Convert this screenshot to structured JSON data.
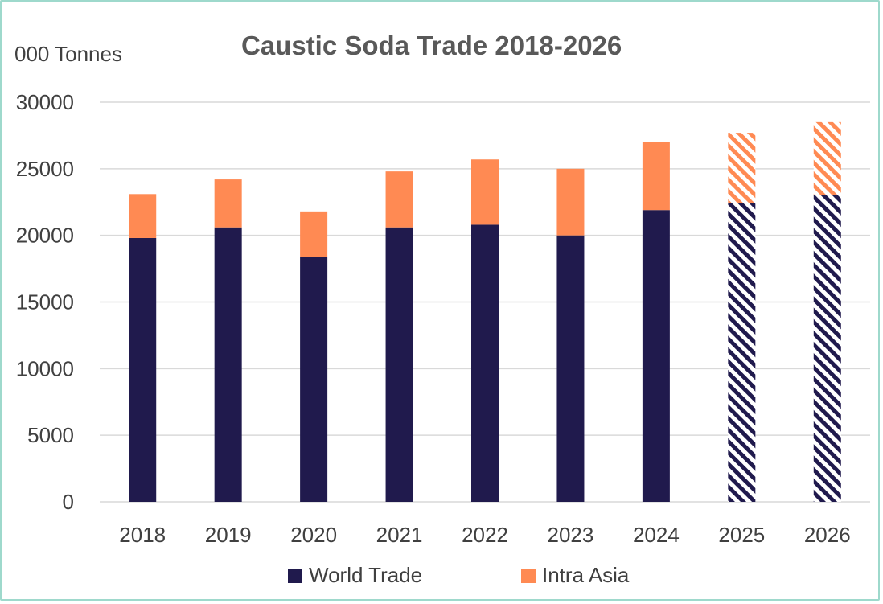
{
  "chart_data": {
    "type": "bar",
    "stacked": true,
    "title": "Caustic Soda Trade 2018-2026",
    "ylabel": "000 Tonnes",
    "categories": [
      "2018",
      "2019",
      "2020",
      "2021",
      "2022",
      "2023",
      "2024",
      "2025",
      "2026"
    ],
    "series": [
      {
        "name": "World Trade",
        "color": "#201a4d",
        "values": [
          19800,
          20600,
          18400,
          20600,
          20800,
          20000,
          21900,
          22400,
          23000
        ]
      },
      {
        "name": "Intra Asia",
        "color": "#ff8a53",
        "values": [
          3300,
          3600,
          3400,
          4200,
          4900,
          5000,
          5100,
          5300,
          5500
        ]
      }
    ],
    "forecast_categories": [
      "2025",
      "2026"
    ],
    "forecast_style": "hatched",
    "ylim": [
      0,
      30000
    ],
    "yticks": [
      0,
      5000,
      10000,
      15000,
      20000,
      25000,
      30000
    ],
    "grid": true,
    "legend_position": "bottom"
  }
}
